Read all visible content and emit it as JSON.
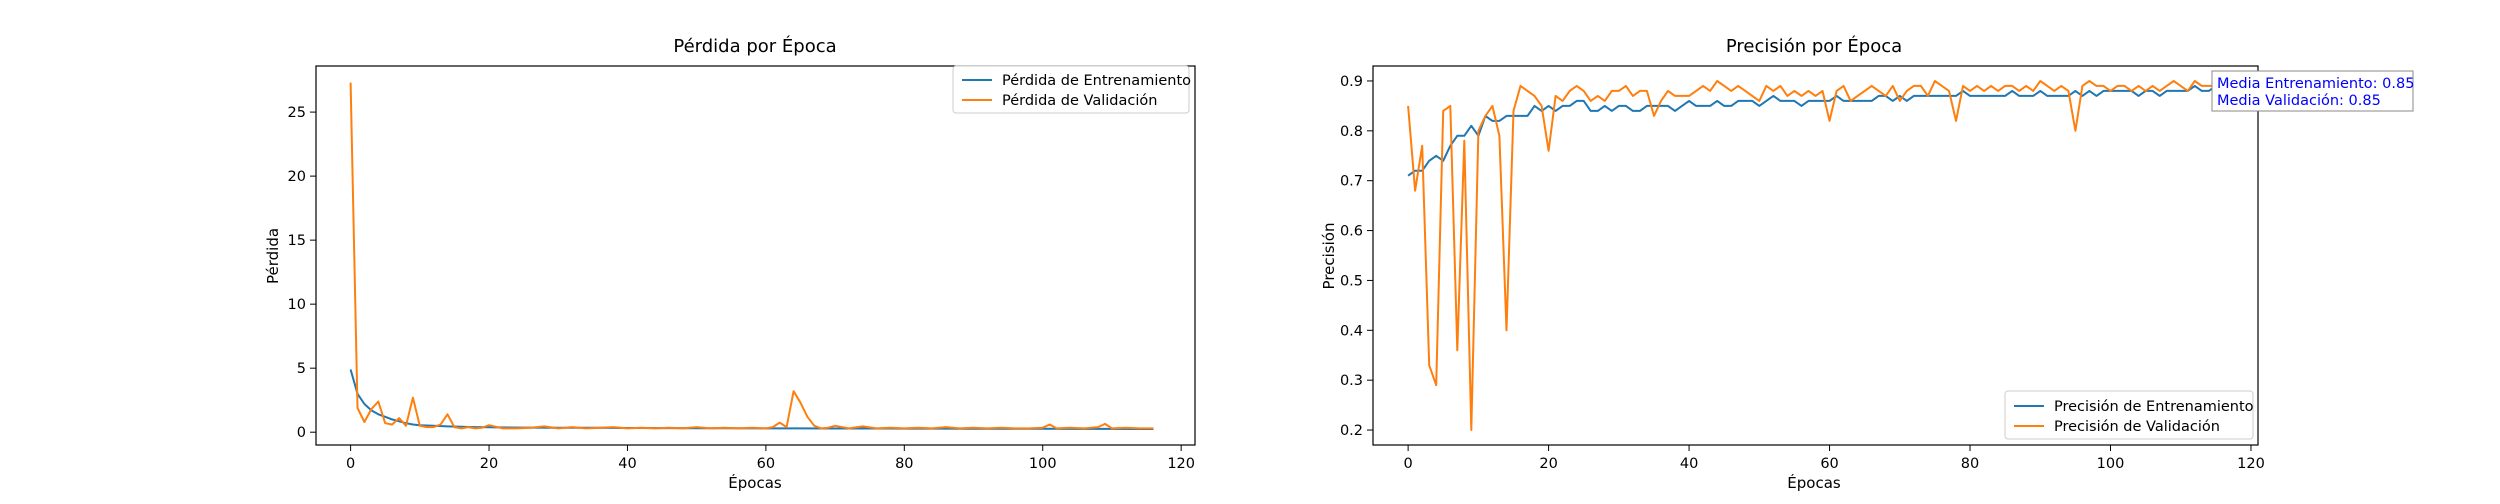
{
  "chart_data": [
    {
      "type": "line",
      "title": "Pérdida por Época",
      "xlabel": "Épocas",
      "ylabel": "Pérdida",
      "xlim": [
        -5,
        122
      ],
      "ylim": [
        -1.0,
        28.6
      ],
      "xticks": [
        0,
        20,
        40,
        60,
        80,
        100,
        120
      ],
      "yticks": [
        0,
        5,
        10,
        15,
        20,
        25
      ],
      "legend_position": "top-right",
      "series": [
        {
          "name": "Pérdida de Entrenamiento",
          "color": "#1f77b4",
          "x": [
            0,
            1,
            2,
            3,
            4,
            5,
            6,
            7,
            8,
            9,
            10,
            12,
            14,
            16,
            18,
            20,
            25,
            30,
            35,
            40,
            45,
            50,
            55,
            60,
            65,
            70,
            75,
            80,
            85,
            90,
            95,
            100,
            105,
            110,
            116
          ],
          "y": [
            4.9,
            3.0,
            2.2,
            1.7,
            1.4,
            1.2,
            1.0,
            0.85,
            0.7,
            0.6,
            0.55,
            0.5,
            0.45,
            0.42,
            0.4,
            0.38,
            0.36,
            0.35,
            0.34,
            0.33,
            0.32,
            0.31,
            0.31,
            0.3,
            0.3,
            0.29,
            0.29,
            0.28,
            0.28,
            0.27,
            0.27,
            0.27,
            0.26,
            0.26,
            0.25
          ]
        },
        {
          "name": "Pérdida de Validación",
          "color": "#ff7f0e",
          "x": [
            0,
            1,
            2,
            3,
            4,
            5,
            6,
            7,
            8,
            9,
            10,
            11,
            12,
            13,
            14,
            15,
            16,
            17,
            18,
            19,
            20,
            22,
            24,
            26,
            28,
            30,
            32,
            34,
            36,
            38,
            40,
            42,
            44,
            46,
            48,
            50,
            52,
            54,
            56,
            58,
            60,
            61,
            62,
            63,
            64,
            65,
            66,
            67,
            68,
            69,
            70,
            72,
            74,
            76,
            78,
            80,
            82,
            84,
            86,
            88,
            90,
            92,
            94,
            96,
            98,
            100,
            101,
            102,
            104,
            106,
            108,
            109,
            110,
            112,
            114,
            116
          ],
          "y": [
            27.3,
            1.9,
            0.8,
            1.8,
            2.4,
            0.7,
            0.6,
            1.1,
            0.5,
            2.7,
            0.5,
            0.4,
            0.4,
            0.6,
            1.4,
            0.4,
            0.3,
            0.4,
            0.3,
            0.35,
            0.55,
            0.3,
            0.3,
            0.35,
            0.45,
            0.3,
            0.4,
            0.3,
            0.35,
            0.4,
            0.3,
            0.35,
            0.3,
            0.35,
            0.3,
            0.4,
            0.3,
            0.35,
            0.3,
            0.35,
            0.3,
            0.4,
            0.75,
            0.4,
            3.2,
            2.3,
            1.2,
            0.5,
            0.3,
            0.35,
            0.5,
            0.3,
            0.45,
            0.3,
            0.35,
            0.3,
            0.35,
            0.3,
            0.4,
            0.3,
            0.35,
            0.3,
            0.35,
            0.3,
            0.3,
            0.35,
            0.6,
            0.3,
            0.35,
            0.3,
            0.4,
            0.65,
            0.3,
            0.35,
            0.3,
            0.3
          ]
        }
      ]
    },
    {
      "type": "line",
      "title": "Precisión por Época",
      "xlabel": "Épocas",
      "ylabel": "Precisión",
      "xlim": [
        -5,
        121
      ],
      "ylim": [
        0.17,
        0.93
      ],
      "xticks": [
        0,
        20,
        40,
        60,
        80,
        100,
        120
      ],
      "yticks": [
        0.2,
        0.3,
        0.4,
        0.5,
        0.6,
        0.7,
        0.8,
        0.9
      ],
      "legend_position": "lower-right",
      "annotation": [
        "Media Entrenamiento: 0.85",
        "Media Validación: 0.85"
      ],
      "series": [
        {
          "name": "Precisión de Entrenamiento",
          "color": "#1f77b4",
          "x": [
            0,
            1,
            2,
            3,
            4,
            5,
            6,
            7,
            8,
            9,
            10,
            11,
            12,
            13,
            14,
            15,
            16,
            17,
            18,
            19,
            20,
            21,
            22,
            23,
            24,
            25,
            26,
            27,
            28,
            29,
            30,
            31,
            32,
            33,
            34,
            35,
            36,
            37,
            38,
            39,
            40,
            41,
            42,
            43,
            44,
            45,
            46,
            47,
            48,
            49,
            50,
            51,
            52,
            53,
            54,
            55,
            56,
            57,
            58,
            59,
            60,
            61,
            62,
            63,
            64,
            65,
            66,
            67,
            68,
            69,
            70,
            71,
            72,
            73,
            74,
            75,
            76,
            77,
            78,
            79,
            80,
            81,
            82,
            83,
            84,
            85,
            86,
            87,
            88,
            89,
            90,
            91,
            92,
            93,
            94,
            95,
            96,
            97,
            98,
            99,
            100,
            101,
            102,
            103,
            104,
            105,
            106,
            107,
            108,
            109,
            110,
            111,
            112,
            113,
            114,
            115,
            116
          ],
          "y": [
            0.71,
            0.72,
            0.72,
            0.74,
            0.75,
            0.74,
            0.77,
            0.79,
            0.79,
            0.81,
            0.79,
            0.83,
            0.82,
            0.82,
            0.83,
            0.83,
            0.83,
            0.83,
            0.85,
            0.84,
            0.85,
            0.84,
            0.85,
            0.85,
            0.86,
            0.86,
            0.84,
            0.84,
            0.85,
            0.84,
            0.85,
            0.85,
            0.84,
            0.84,
            0.85,
            0.85,
            0.85,
            0.85,
            0.84,
            0.85,
            0.86,
            0.85,
            0.85,
            0.85,
            0.86,
            0.85,
            0.85,
            0.86,
            0.86,
            0.86,
            0.85,
            0.86,
            0.87,
            0.86,
            0.86,
            0.86,
            0.85,
            0.86,
            0.86,
            0.86,
            0.86,
            0.87,
            0.86,
            0.86,
            0.86,
            0.86,
            0.86,
            0.87,
            0.87,
            0.86,
            0.87,
            0.86,
            0.87,
            0.87,
            0.87,
            0.87,
            0.87,
            0.87,
            0.87,
            0.88,
            0.87,
            0.87,
            0.87,
            0.87,
            0.87,
            0.87,
            0.88,
            0.87,
            0.87,
            0.87,
            0.88,
            0.87,
            0.87,
            0.87,
            0.87,
            0.88,
            0.87,
            0.88,
            0.87,
            0.88,
            0.88,
            0.88,
            0.88,
            0.88,
            0.87,
            0.88,
            0.88,
            0.87,
            0.88,
            0.88,
            0.88,
            0.88,
            0.89,
            0.88,
            0.88,
            0.89,
            0.89
          ]
        },
        {
          "name": "Precisión de Validación",
          "color": "#ff7f0e",
          "x": [
            0,
            1,
            2,
            3,
            4,
            5,
            6,
            7,
            8,
            9,
            10,
            11,
            12,
            13,
            14,
            15,
            16,
            17,
            18,
            19,
            20,
            21,
            22,
            23,
            24,
            25,
            26,
            27,
            28,
            29,
            30,
            31,
            32,
            33,
            34,
            35,
            36,
            37,
            38,
            39,
            40,
            41,
            42,
            43,
            44,
            45,
            46,
            47,
            48,
            49,
            50,
            51,
            52,
            53,
            54,
            55,
            56,
            57,
            58,
            59,
            60,
            61,
            62,
            63,
            64,
            65,
            66,
            67,
            68,
            69,
            70,
            71,
            72,
            73,
            74,
            75,
            76,
            77,
            78,
            79,
            80,
            81,
            82,
            83,
            84,
            85,
            86,
            87,
            88,
            89,
            90,
            91,
            92,
            93,
            94,
            95,
            96,
            97,
            98,
            99,
            100,
            101,
            102,
            103,
            104,
            105,
            106,
            107,
            108,
            109,
            110,
            111,
            112,
            113,
            114,
            115,
            116
          ],
          "y": [
            0.85,
            0.68,
            0.77,
            0.33,
            0.29,
            0.84,
            0.85,
            0.36,
            0.78,
            0.2,
            0.8,
            0.83,
            0.85,
            0.79,
            0.4,
            0.84,
            0.89,
            0.88,
            0.87,
            0.85,
            0.76,
            0.87,
            0.86,
            0.88,
            0.89,
            0.88,
            0.86,
            0.87,
            0.86,
            0.88,
            0.88,
            0.89,
            0.87,
            0.88,
            0.88,
            0.83,
            0.86,
            0.88,
            0.87,
            0.87,
            0.87,
            0.88,
            0.89,
            0.88,
            0.9,
            0.89,
            0.88,
            0.89,
            0.88,
            0.87,
            0.86,
            0.89,
            0.88,
            0.89,
            0.87,
            0.88,
            0.87,
            0.88,
            0.87,
            0.88,
            0.82,
            0.88,
            0.89,
            0.86,
            0.87,
            0.88,
            0.89,
            0.88,
            0.87,
            0.89,
            0.86,
            0.88,
            0.89,
            0.89,
            0.87,
            0.9,
            0.89,
            0.88,
            0.82,
            0.89,
            0.88,
            0.89,
            0.88,
            0.89,
            0.88,
            0.89,
            0.89,
            0.88,
            0.89,
            0.88,
            0.9,
            0.89,
            0.88,
            0.89,
            0.88,
            0.8,
            0.89,
            0.9,
            0.89,
            0.89,
            0.88,
            0.89,
            0.89,
            0.88,
            0.89,
            0.88,
            0.89,
            0.88,
            0.89,
            0.9,
            0.89,
            0.88,
            0.9,
            0.89,
            0.89,
            0.89,
            0.89
          ]
        }
      ]
    }
  ]
}
